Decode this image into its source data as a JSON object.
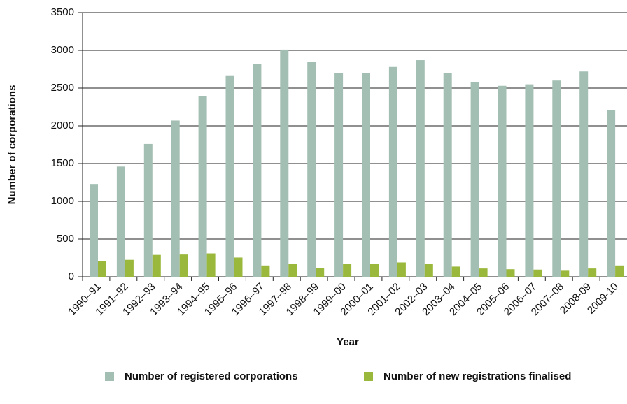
{
  "chart_data": {
    "type": "bar",
    "x_label": "Year",
    "y_label": "Number of corporations",
    "categories": [
      "1990–91",
      "1991–92",
      "1992–93",
      "1993–94",
      "1994–95",
      "1995–96",
      "1996–97",
      "1997–98",
      "1998–99",
      "1999–00",
      "2000–01",
      "2001–02",
      "2002–03",
      "2003–04",
      "2004–05",
      "2005–06",
      "2006–07",
      "2007–08",
      "2008-09",
      "2009-10"
    ],
    "series": [
      {
        "name": "Number of registered corporations",
        "color": "#a3bfb3",
        "values": [
          1230,
          1460,
          1760,
          2070,
          2390,
          2660,
          2820,
          3010,
          2850,
          2700,
          2700,
          2780,
          2870,
          2700,
          2580,
          2530,
          2550,
          2600,
          2720,
          2210
        ]
      },
      {
        "name": "Number of new registrations finalised",
        "color": "#9ab83c",
        "values": [
          210,
          225,
          290,
          295,
          310,
          255,
          150,
          170,
          115,
          170,
          170,
          190,
          170,
          135,
          110,
          100,
          95,
          80,
          110,
          150
        ]
      }
    ],
    "ylim": [
      0,
      3500
    ],
    "yticks": [
      0,
      500,
      1000,
      1500,
      2000,
      2500,
      3000,
      3500
    ],
    "grid": true
  }
}
